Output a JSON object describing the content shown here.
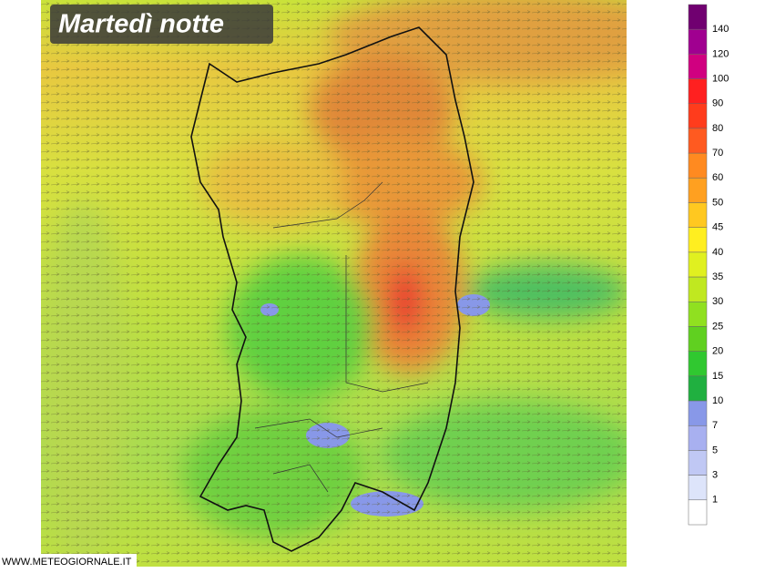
{
  "title": "Martedì notte",
  "watermark": "WWW.METEOGIORNALE.IT",
  "legend": {
    "labels": [
      140,
      120,
      100,
      90,
      80,
      70,
      60,
      50,
      45,
      40,
      35,
      30,
      25,
      20,
      15,
      10,
      7,
      5,
      3,
      1
    ],
    "colors": [
      "#700070",
      "#a00090",
      "#d00080",
      "#ff2020",
      "#ff3c1c",
      "#ff5a20",
      "#ff8a20",
      "#ffa020",
      "#ffc820",
      "#ffee20",
      "#e0f020",
      "#c0e820",
      "#90e020",
      "#60d020",
      "#30c830",
      "#20b040",
      "#8898e8",
      "#a8b0f0",
      "#c0c8f4",
      "#dde4fa",
      "#ffffff"
    ]
  }
}
